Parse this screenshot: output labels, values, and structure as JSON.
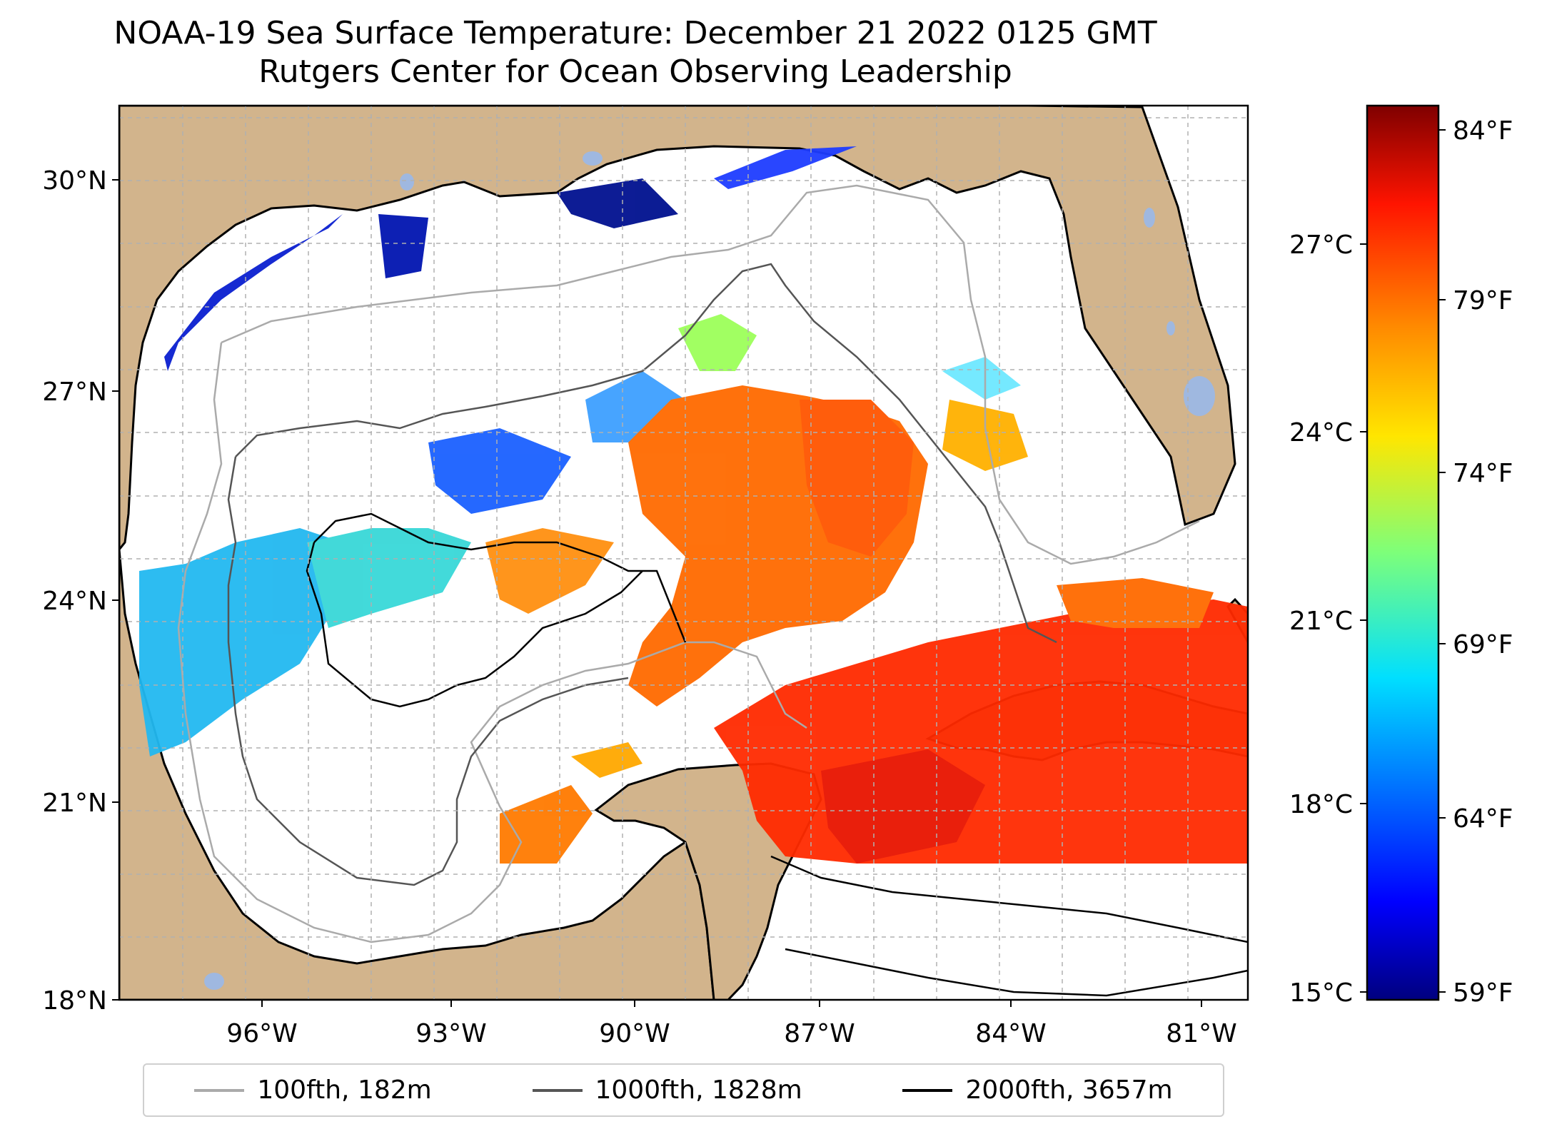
{
  "title": {
    "line1": "NOAA-19 Sea Surface Temperature: December 21 2022 0125 GMT",
    "line2": "Rutgers Center for Ocean Observing Leadership"
  },
  "map": {
    "lat_range": [
      18,
      31
    ],
    "lon_range": [
      -98,
      -80
    ],
    "lat_ticks": [
      "18°N",
      "21°N",
      "24°N",
      "27°N",
      "30°N"
    ],
    "lon_ticks": [
      "96°W",
      "93°W",
      "90°W",
      "87°W",
      "84°W",
      "81°W"
    ],
    "land_color": "#d2b48c",
    "lake_color": "#9fb8e0"
  },
  "colorbar": {
    "celsius_ticks": [
      "15°C",
      "18°C",
      "21°C",
      "24°C",
      "27°C"
    ],
    "fahrenheit_ticks": [
      "59°F",
      "64°F",
      "69°F",
      "74°F",
      "79°F",
      "84°F"
    ],
    "colormap": "jet",
    "range_c": [
      15,
      28.9
    ]
  },
  "legend": {
    "items": [
      {
        "label": "100fth, 182m",
        "color": "#aaaaaa"
      },
      {
        "label": "1000fth, 1828m",
        "color": "#555555"
      },
      {
        "label": "2000fth, 3657m",
        "color": "#000000"
      }
    ]
  }
}
